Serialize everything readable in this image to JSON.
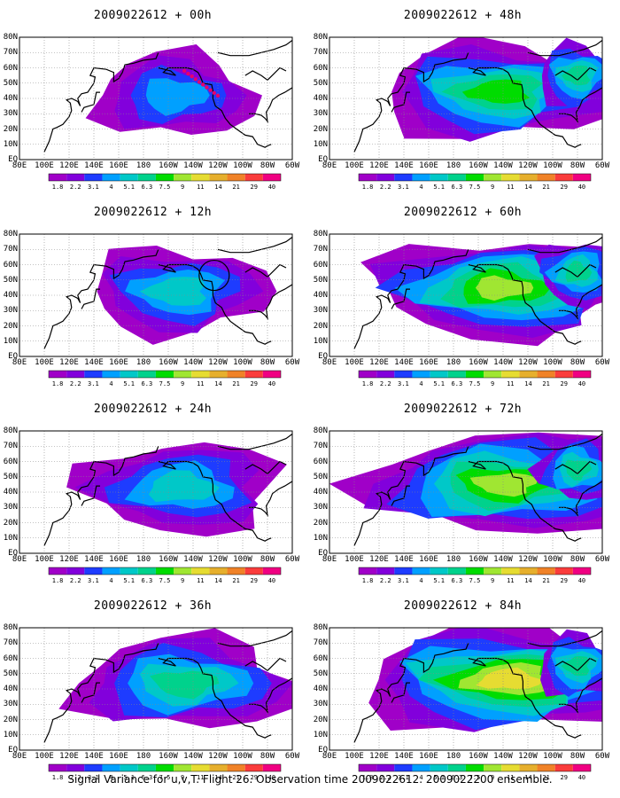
{
  "panels": [
    {
      "title": "2009022612 + 00h",
      "col": 0,
      "row": 0,
      "lead": 0
    },
    {
      "title": "2009022612 + 48h",
      "col": 1,
      "row": 0,
      "lead": 48
    },
    {
      "title": "2009022612 + 12h",
      "col": 0,
      "row": 1,
      "lead": 12
    },
    {
      "title": "2009022612 + 60h",
      "col": 1,
      "row": 1,
      "lead": 60
    },
    {
      "title": "2009022612 + 24h",
      "col": 0,
      "row": 2,
      "lead": 24
    },
    {
      "title": "2009022612 + 72h",
      "col": 1,
      "row": 2,
      "lead": 72
    },
    {
      "title": "2009022612 + 36h",
      "col": 0,
      "row": 3,
      "lead": 36
    },
    {
      "title": "2009022612 + 84h",
      "col": 1,
      "row": 3,
      "lead": 84
    }
  ],
  "x_axis_labels": [
    "80E",
    "100E",
    "120E",
    "140E",
    "160E",
    "180",
    "160W",
    "140W",
    "120W",
    "100W",
    "80W",
    "60W"
  ],
  "y_axis_labels": [
    "80N",
    "70N",
    "60N",
    "50N",
    "40N",
    "30N",
    "20N",
    "10N",
    "EQ"
  ],
  "colorbar": {
    "levels": [
      "1.8",
      "2.2",
      "3.1",
      "4",
      "5.1",
      "6.3",
      "7.5",
      "9",
      "11",
      "14",
      "21",
      "29",
      "40"
    ],
    "colors": [
      "#a000c8",
      "#8200dc",
      "#1e3cff",
      "#00a0ff",
      "#00c8c8",
      "#00d28c",
      "#00dc00",
      "#a0e632",
      "#e6dc32",
      "#e6af2d",
      "#f08228",
      "#fa3c3c",
      "#f00082"
    ]
  },
  "footer": "Signal Variance for u,v,T. Flight 26. Observation time 2009022612. 2009022200 ensemble."
}
